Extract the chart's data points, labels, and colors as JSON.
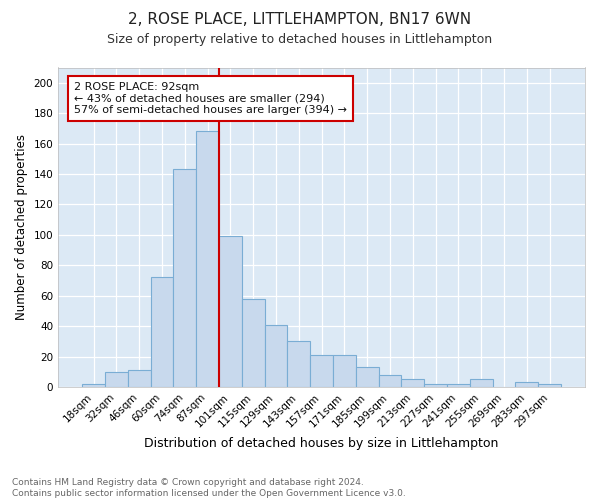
{
  "title": "2, ROSE PLACE, LITTLEHAMPTON, BN17 6WN",
  "subtitle": "Size of property relative to detached houses in Littlehampton",
  "xlabel": "Distribution of detached houses by size in Littlehampton",
  "ylabel": "Number of detached properties",
  "footnote": "Contains HM Land Registry data © Crown copyright and database right 2024.\nContains public sector information licensed under the Open Government Licence v3.0.",
  "bar_labels": [
    "18sqm",
    "32sqm",
    "46sqm",
    "60sqm",
    "74sqm",
    "87sqm",
    "101sqm",
    "115sqm",
    "129sqm",
    "143sqm",
    "157sqm",
    "171sqm",
    "185sqm",
    "199sqm",
    "213sqm",
    "227sqm",
    "241sqm",
    "255sqm",
    "269sqm",
    "283sqm",
    "297sqm"
  ],
  "bar_values": [
    2,
    10,
    11,
    72,
    143,
    168,
    99,
    58,
    41,
    30,
    21,
    21,
    13,
    8,
    5,
    2,
    2,
    5,
    0,
    3,
    2
  ],
  "bar_color": "#c8d9ed",
  "bar_edge_color": "#7aadd4",
  "background_color": "#dce9f5",
  "grid_color": "#ffffff",
  "annotation_text": "2 ROSE PLACE: 92sqm\n← 43% of detached houses are smaller (294)\n57% of semi-detached houses are larger (394) →",
  "annotation_box_color": "#ffffff",
  "annotation_box_edge_color": "#cc0000",
  "vline_x": 5.5,
  "vline_color": "#cc0000",
  "ylim": [
    0,
    210
  ],
  "yticks": [
    0,
    20,
    40,
    60,
    80,
    100,
    120,
    140,
    160,
    180,
    200
  ],
  "title_fontsize": 11,
  "subtitle_fontsize": 9,
  "xlabel_fontsize": 9,
  "ylabel_fontsize": 8.5,
  "tick_fontsize": 7.5,
  "annotation_fontsize": 8,
  "footnote_fontsize": 6.5
}
